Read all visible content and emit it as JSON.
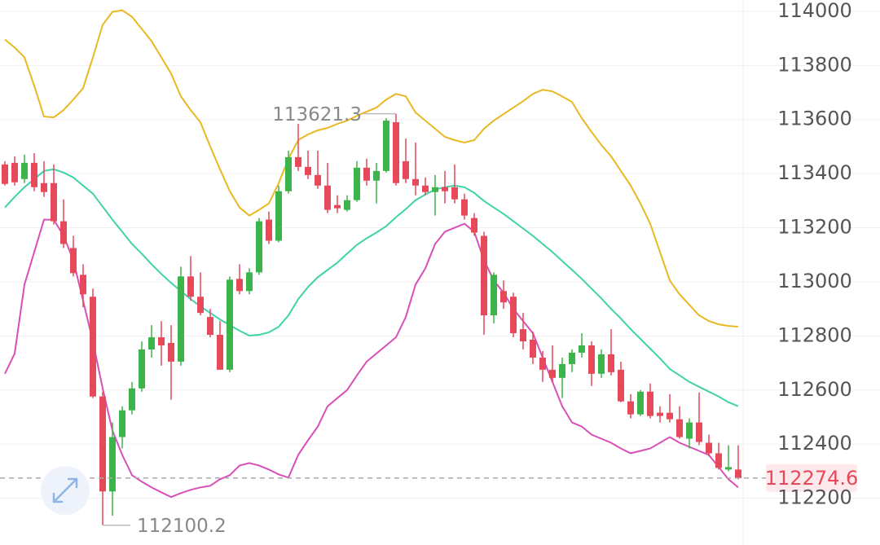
{
  "chart_data": {
    "type": "candlestick",
    "up_color": "#3cb44b",
    "down_color": "#e6495a",
    "ylim": [
      112027,
      114042
    ],
    "yticks": [
      112200,
      112400,
      112600,
      112800,
      113000,
      113200,
      113400,
      113600,
      113800,
      114000
    ],
    "grid": true,
    "open": [
      113434,
      113440,
      113380,
      113440,
      113365,
      113365,
      113224,
      113125,
      113026,
      112945,
      112576,
      112225,
      112426,
      112525,
      112606,
      112750,
      112795,
      112774,
      112705,
      113020,
      112945,
      112870,
      112804,
      112675,
      113011,
      112966,
      113035,
      113230,
      113152,
      113335,
      113461,
      113425,
      113395,
      113356,
      113284,
      113266,
      113302,
      113422,
      113374,
      113410,
      113590,
      113446,
      113380,
      113356,
      113332,
      113350,
      113350,
      113305,
      113236,
      113170,
      112876,
      112966,
      112945,
      112825,
      112786,
      112720,
      112675,
      112645,
      112696,
      112738,
      112765,
      112660,
      112732,
      112675,
      112558,
      112510,
      112594,
      112516,
      112516,
      112492,
      112420,
      112480,
      112405,
      112366,
      112306,
      112306
    ],
    "high": [
      113446,
      113464,
      113470,
      113476,
      113446,
      113434,
      113305,
      113170,
      113065,
      112975,
      112594,
      112480,
      112540,
      112630,
      112780,
      112840,
      112855,
      112840,
      113056,
      113095,
      113035,
      112900,
      112855,
      113020,
      113065,
      113050,
      113236,
      113260,
      113356,
      113485,
      113584,
      113485,
      113485,
      113440,
      113320,
      113320,
      113446,
      113455,
      113440,
      113605,
      113621.3,
      113530,
      113515,
      113386,
      113395,
      113410,
      113434,
      113326,
      113254,
      113185,
      113035,
      113005,
      112960,
      112885,
      112816,
      112744,
      112765,
      112720,
      112750,
      112810,
      112780,
      112750,
      112825,
      112705,
      112585,
      112600,
      112624,
      112540,
      112585,
      112540,
      112495,
      112591,
      112435,
      112405,
      112396,
      112396
    ],
    "low": [
      113356,
      113356,
      113365,
      113335,
      113314,
      113212,
      113125,
      113020,
      112906,
      112570,
      112100.2,
      112135,
      112384,
      112510,
      112594,
      112720,
      112690,
      112564,
      112690,
      112930,
      112876,
      112795,
      112675,
      112666,
      112954,
      112954,
      113026,
      113140,
      113146,
      113326,
      113410,
      113380,
      113344,
      113254,
      113254,
      113260,
      113296,
      113356,
      113290,
      113404,
      113356,
      113365,
      113320,
      113320,
      113245,
      113290,
      113290,
      113230,
      113170,
      112804,
      112846,
      112900,
      112795,
      112750,
      112696,
      112630,
      112630,
      112570,
      112666,
      112720,
      112615,
      112645,
      112654,
      112555,
      112495,
      112504,
      112495,
      112480,
      112480,
      112420,
      112384,
      112396,
      112354,
      112306,
      112300,
      112270
    ],
    "close": [
      113362,
      113368,
      113440,
      113350,
      113332,
      113224,
      113140,
      113032,
      112954,
      112576,
      112225,
      112426,
      112525,
      112606,
      112750,
      112795,
      112765,
      112705,
      113020,
      112945,
      112885,
      112804,
      112675,
      113008,
      112966,
      113035,
      113224,
      113152,
      113335,
      113461,
      113425,
      113395,
      113356,
      113266,
      113272,
      113302,
      113422,
      113374,
      113410,
      113596,
      113365,
      113380,
      113356,
      113332,
      113350,
      113335,
      113305,
      113245,
      113182,
      112876,
      113026,
      112924,
      112810,
      112780,
      112720,
      112675,
      112645,
      112696,
      112738,
      112765,
      112660,
      112732,
      112666,
      112558,
      112510,
      112594,
      112504,
      112504,
      112492,
      112426,
      112480,
      112408,
      112366,
      112312,
      112315,
      112274.6
    ],
    "bands": [
      {
        "color": "#e8b923",
        "values": [
          113896,
          113866,
          113830,
          113725,
          113611,
          113608,
          113635,
          113674,
          113716,
          113830,
          113950,
          113998,
          114004,
          113980,
          113935,
          113890,
          113830,
          113770,
          113686,
          113635,
          113590,
          113500,
          113416,
          113335,
          113275,
          113245,
          113266,
          113290,
          113365,
          113455,
          113524,
          113545,
          113560,
          113569,
          113584,
          113596,
          113614,
          113629,
          113644,
          113674,
          113695,
          113686,
          113626,
          113596,
          113566,
          113536,
          113524,
          113515,
          113524,
          113566,
          113596,
          113620,
          113644,
          113668,
          113695,
          113710,
          113704,
          113686,
          113665,
          113605,
          113554,
          113506,
          113464,
          113410,
          113356,
          113290,
          113215,
          113110,
          113005,
          112954,
          112915,
          112876,
          112855,
          112843,
          112837,
          112834
        ]
      },
      {
        "color": "#3fd3a8",
        "values": [
          113275,
          113314,
          113350,
          113380,
          113410,
          113416,
          113404,
          113386,
          113356,
          113326,
          113278,
          113230,
          113185,
          113140,
          113104,
          113065,
          113029,
          112996,
          112966,
          112936,
          112909,
          112885,
          112861,
          112840,
          112819,
          112801,
          112804,
          112813,
          112834,
          112876,
          112936,
          112981,
          113017,
          113044,
          113071,
          113104,
          113137,
          113161,
          113182,
          113206,
          113239,
          113269,
          113302,
          113323,
          113341,
          113350,
          113356,
          113350,
          113329,
          113299,
          113275,
          113251,
          113224,
          113197,
          113170,
          113140,
          113110,
          113077,
          113044,
          113011,
          112975,
          112939,
          112900,
          112864,
          112825,
          112789,
          112753,
          112717,
          112678,
          112654,
          112630,
          112612,
          112594,
          112576,
          112555,
          112540
        ]
      },
      {
        "color": "#d94fb8",
        "values": [
          112660,
          112735,
          112990,
          113110,
          113230,
          113230,
          113170,
          113080,
          112930,
          112780,
          112606,
          112450,
          112360,
          112285,
          112261,
          112240,
          112222,
          112204,
          112219,
          112231,
          112240,
          112246,
          112270,
          112285,
          112321,
          112330,
          112321,
          112306,
          112288,
          112276,
          112360,
          112414,
          112465,
          112540,
          112570,
          112600,
          112654,
          112705,
          112735,
          112765,
          112795,
          112870,
          112990,
          113050,
          113140,
          113185,
          113200,
          113215,
          113185,
          113080,
          113005,
          112960,
          112900,
          112855,
          112810,
          112720,
          112630,
          112540,
          112480,
          112465,
          112435,
          112420,
          112405,
          112384,
          112366,
          112375,
          112384,
          112405,
          112426,
          112405,
          112390,
          112375,
          112360,
          112315,
          112270,
          112240
        ]
      }
    ]
  }
}
